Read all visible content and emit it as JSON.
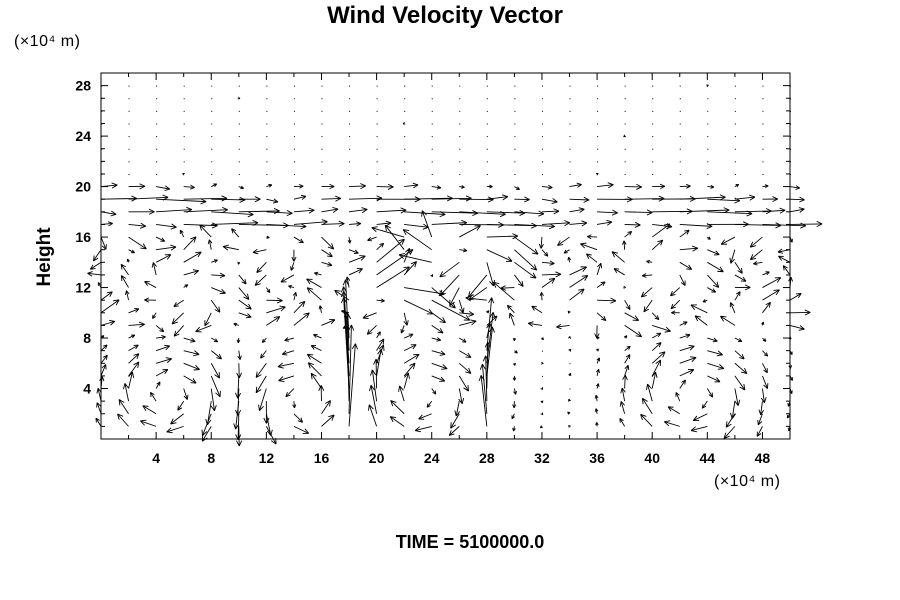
{
  "chart_data": {
    "type": "vector_field",
    "title": "Wind Velocity Vector",
    "ylabel": "Height",
    "y_unit": "(×10⁴ m)",
    "x_unit": "(×10⁴ m)",
    "xlim": [
      0,
      50
    ],
    "ylim": [
      0,
      29
    ],
    "x_ticks": [
      4,
      8,
      12,
      16,
      20,
      24,
      28,
      32,
      36,
      40,
      44,
      48
    ],
    "y_ticks": [
      4,
      8,
      12,
      16,
      20,
      24,
      28
    ],
    "time_label": "TIME",
    "time_value": "5100000.0",
    "field": {
      "note_grid_dx": 2,
      "note_grid_dy": 1,
      "upper_layer": {
        "y_range": [
          17,
          20
        ],
        "direction": "east",
        "speed": "strong"
      },
      "quiet_layer": {
        "y_range": [
          21,
          29
        ],
        "speed": "near zero"
      },
      "mid_layer": {
        "y_range": [
          9,
          16
        ],
        "speed": "moderate, variable"
      },
      "lower_vortices": [
        {
          "center": [
            5,
            3.5
          ],
          "rotation": "clockwise"
        },
        {
          "center": [
            15,
            3.0
          ],
          "rotation": "counterclockwise"
        },
        {
          "center": [
            23,
            3.5
          ],
          "rotation": "clockwise"
        },
        {
          "center": [
            43,
            3.5
          ],
          "rotation": "clockwise"
        }
      ],
      "updrafts": [
        18,
        28
      ]
    }
  },
  "footer": {
    "time_text": "TIME = 5100000.0"
  }
}
